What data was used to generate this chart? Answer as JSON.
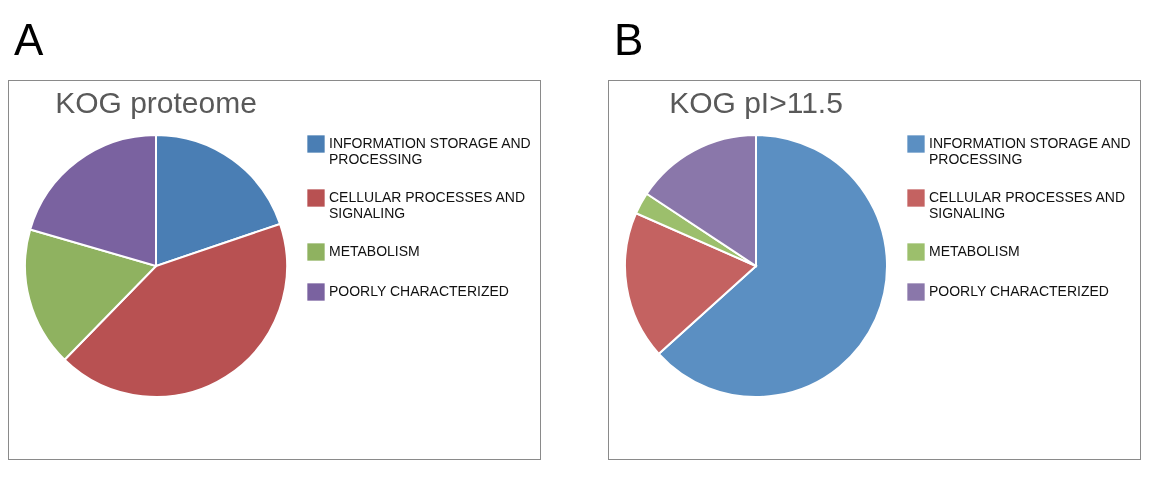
{
  "chart_data": [
    {
      "type": "pie",
      "title": "KOG proteome",
      "annotations": [
        "A"
      ],
      "legend": "right",
      "categories": [
        "INFORMATION STORAGE AND PROCESSING",
        "CELLULAR PROCESSES AND SIGNALING",
        "METABOLISM",
        "POORLY CHARACTERIZED"
      ],
      "values": [
        19.8,
        42.5,
        17.2,
        20.5
      ],
      "colors": [
        "#4a7eb4",
        "#b85152",
        "#8fb260",
        "#7a62a0"
      ]
    },
    {
      "type": "pie",
      "title": "KOG pI>11.5",
      "annotations": [
        "B"
      ],
      "legend": "right",
      "categories": [
        "INFORMATION STORAGE AND PROCESSING",
        "CELLULAR PROCESSES AND SIGNALING",
        "METABOLISM",
        "POORLY CHARACTERIZED"
      ],
      "values": [
        63.3,
        18.3,
        2.7,
        15.7
      ],
      "colors": [
        "#5b8fc2",
        "#c46261",
        "#9cbf6c",
        "#8a77aa"
      ]
    }
  ]
}
